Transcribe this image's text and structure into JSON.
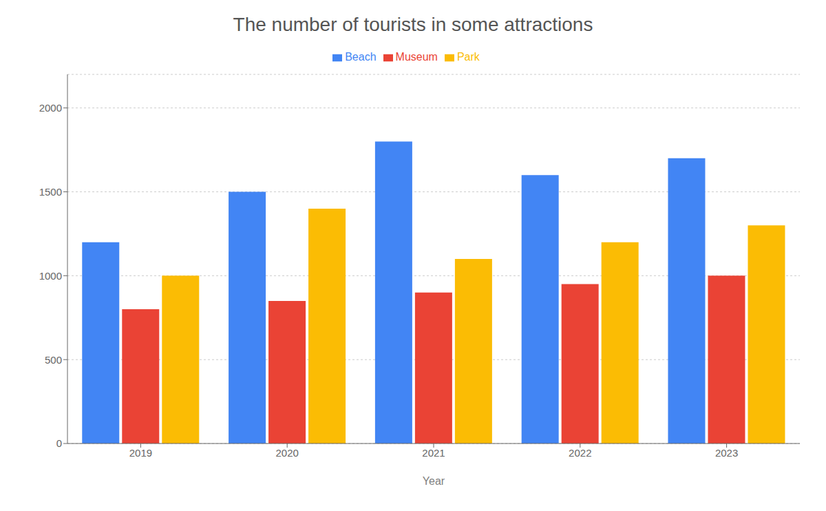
{
  "chart_data": {
    "type": "bar",
    "title": "The number of tourists in some attractions",
    "xlabel": "Year",
    "categories": [
      "2019",
      "2020",
      "2021",
      "2022",
      "2023"
    ],
    "series": [
      {
        "name": "Beach",
        "color": "#4285F4",
        "values": [
          1200,
          1500,
          1800,
          1600,
          1700
        ]
      },
      {
        "name": "Museum",
        "color": "#EA4335",
        "values": [
          800,
          850,
          900,
          950,
          1000
        ]
      },
      {
        "name": "Park",
        "color": "#FBBC04",
        "values": [
          1000,
          1400,
          1100,
          1200,
          1300
        ]
      }
    ],
    "ylim": [
      0,
      2200
    ],
    "yticks": [
      0,
      500,
      1000,
      1500,
      2000
    ],
    "grid": true,
    "legend": "top"
  }
}
